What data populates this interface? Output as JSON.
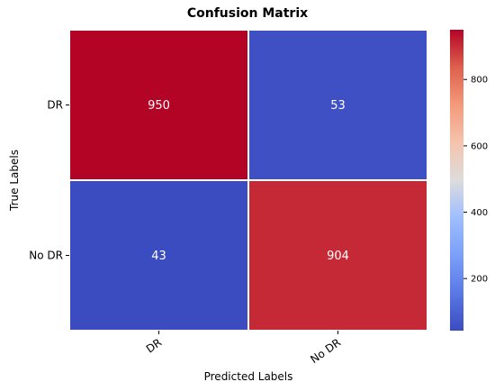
{
  "chart_data": {
    "type": "heatmap",
    "title": "Confusion Matrix",
    "xlabel": "Predicted Labels",
    "ylabel": "True Labels",
    "x_categories": [
      "DR",
      "No DR"
    ],
    "y_categories": [
      "DR",
      "No DR"
    ],
    "values": [
      [
        950,
        53
      ],
      [
        43,
        904
      ]
    ],
    "colormap": "coolwarm",
    "color_range": [
      43,
      950
    ],
    "colorbar_ticks": [
      200,
      400,
      600,
      800
    ],
    "colorbar_tick_labels": [
      "200",
      "400",
      "600",
      "800"
    ],
    "annotation_color": "#ffffff"
  }
}
